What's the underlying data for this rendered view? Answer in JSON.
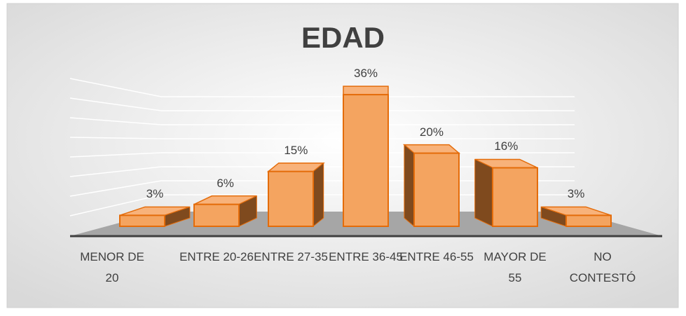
{
  "chart_data": {
    "type": "bar3d",
    "title": "EDAD",
    "categories": [
      "MENOR DE 20",
      "ENTRE 20-26",
      "ENTRE 27-35",
      "ENTRE 36-45",
      "ENTRE 46-55",
      "MAYOR DE 55",
      "NO CONTESTÓ"
    ],
    "values": [
      3,
      6,
      15,
      36,
      20,
      16,
      3
    ],
    "value_labels": [
      "3%",
      "6%",
      "15%",
      "36%",
      "20%",
      "16%",
      "3%"
    ],
    "color": "#f4a460"
  }
}
